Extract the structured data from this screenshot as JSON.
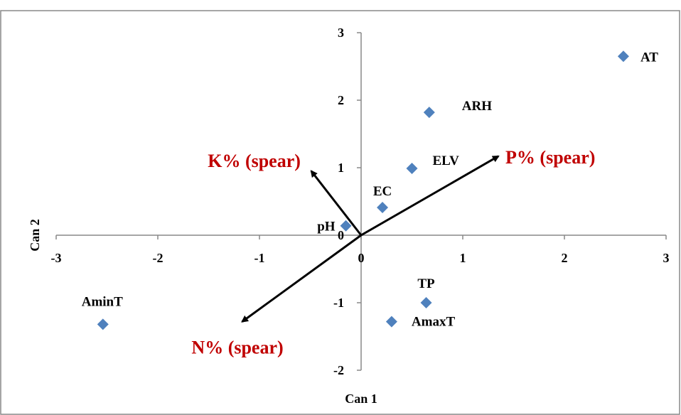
{
  "chart_data": {
    "type": "scatter",
    "title": "",
    "xlabel": "Can 1",
    "ylabel": "Can 2",
    "xlim": [
      -3,
      3
    ],
    "ylim": [
      -2,
      3
    ],
    "x_ticks": [
      "-3",
      "-2",
      "-1",
      "0",
      "1",
      "2",
      "3"
    ],
    "y_ticks": [
      "-2",
      "-1",
      "0",
      "1",
      "2",
      "3"
    ],
    "grid": false,
    "legend": "none",
    "point_color": "#4F81BD",
    "points": [
      {
        "label": "AT",
        "x": 2.58,
        "y": 2.65
      },
      {
        "label": "ARH",
        "x": 0.67,
        "y": 1.82
      },
      {
        "label": "ELV",
        "x": 0.5,
        "y": 0.99
      },
      {
        "label": "EC",
        "x": 0.21,
        "y": 0.41
      },
      {
        "label": "pH",
        "x": -0.15,
        "y": 0.14
      },
      {
        "label": "TP",
        "x": 0.64,
        "y": -1.0
      },
      {
        "label": "AmaxT",
        "x": 0.3,
        "y": -1.28
      },
      {
        "label": "AminT",
        "x": -2.54,
        "y": -1.32
      }
    ],
    "vector_color": "#C00000",
    "vectors": [
      {
        "label": "P%  (spear)",
        "x": 1.35,
        "y": 1.17
      },
      {
        "label": "K%  (spear)",
        "x": -0.49,
        "y": 0.95
      },
      {
        "label": "N%  (spear)",
        "x": -1.17,
        "y": -1.28
      }
    ]
  }
}
